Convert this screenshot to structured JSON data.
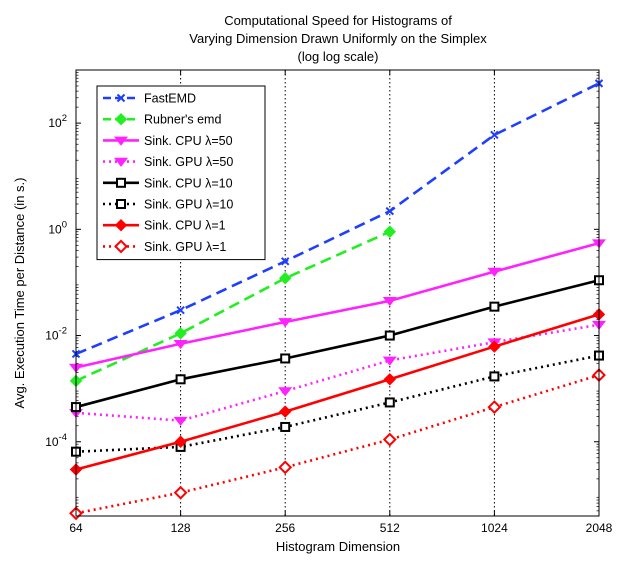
{
  "chart_data": {
    "type": "line",
    "title_lines": [
      "Computational Speed for Histograms of",
      "Varying Dimension Drawn Uniformly on the Simplex",
      "(log log scale)"
    ],
    "xlabel": "Histogram Dimension",
    "ylabel": "Avg. Execution Time per Distance (in s.)",
    "x_scale": "log2",
    "y_scale": "log10",
    "x": [
      64,
      128,
      256,
      512,
      1024,
      2048
    ],
    "x_tick_labels": [
      "64",
      "128",
      "256",
      "512",
      "1024",
      "2048"
    ],
    "y_ticks": [
      {
        "value": 0.0001,
        "base": "10",
        "exp": "-4"
      },
      {
        "value": 0.01,
        "base": "10",
        "exp": "-2"
      },
      {
        "value": 1,
        "base": "10",
        "exp": "0"
      },
      {
        "value": 100,
        "base": "10",
        "exp": "2"
      }
    ],
    "xlim": [
      64,
      2048
    ],
    "ylim": [
      4e-06,
      1000
    ],
    "grid": "dotted, at x ticks",
    "legend_position": "top-left",
    "series": [
      {
        "name": "FastEMD",
        "color": "#1f3fff",
        "dash": "dashed",
        "marker": "x",
        "values": [
          0.0045,
          0.03,
          0.25,
          2.2,
          60,
          560
        ]
      },
      {
        "name": "Rubner's emd",
        "color": "#22ee22",
        "dash": "dashed",
        "marker": "diamond-filled",
        "values": [
          0.0014,
          0.011,
          0.12,
          0.9,
          null,
          null
        ]
      },
      {
        "name": "Sink. CPU λ=50",
        "color": "#ff22ff",
        "dash": "solid",
        "marker": "triangle-filled",
        "values": [
          0.0025,
          0.007,
          0.018,
          0.045,
          0.16,
          0.55
        ]
      },
      {
        "name": "Sink. GPU λ=50",
        "color": "#ff22ff",
        "dash": "dotted",
        "marker": "triangle-filled",
        "values": [
          0.00035,
          0.00025,
          0.0009,
          0.0034,
          0.0075,
          0.016
        ]
      },
      {
        "name": "Sink. CPU λ=10",
        "color": "#000000",
        "dash": "solid",
        "marker": "square-open",
        "values": [
          0.00045,
          0.0015,
          0.0037,
          0.01,
          0.035,
          0.11
        ]
      },
      {
        "name": "Sink. GPU λ=10",
        "color": "#000000",
        "dash": "dotted",
        "marker": "square-open",
        "values": [
          6.5e-05,
          8e-05,
          0.00019,
          0.00055,
          0.0017,
          0.0042
        ]
      },
      {
        "name": "Sink. CPU λ=1",
        "color": "#ff0000",
        "dash": "solid",
        "marker": "diamond-filled",
        "values": [
          3e-05,
          0.0001,
          0.00037,
          0.0015,
          0.0062,
          0.025
        ]
      },
      {
        "name": "Sink. GPU λ=1",
        "color": "#ff0000",
        "dash": "dotted",
        "marker": "diamond-open",
        "values": [
          4.5e-06,
          1.1e-05,
          3.3e-05,
          0.00011,
          0.00045,
          0.0018
        ]
      }
    ]
  }
}
